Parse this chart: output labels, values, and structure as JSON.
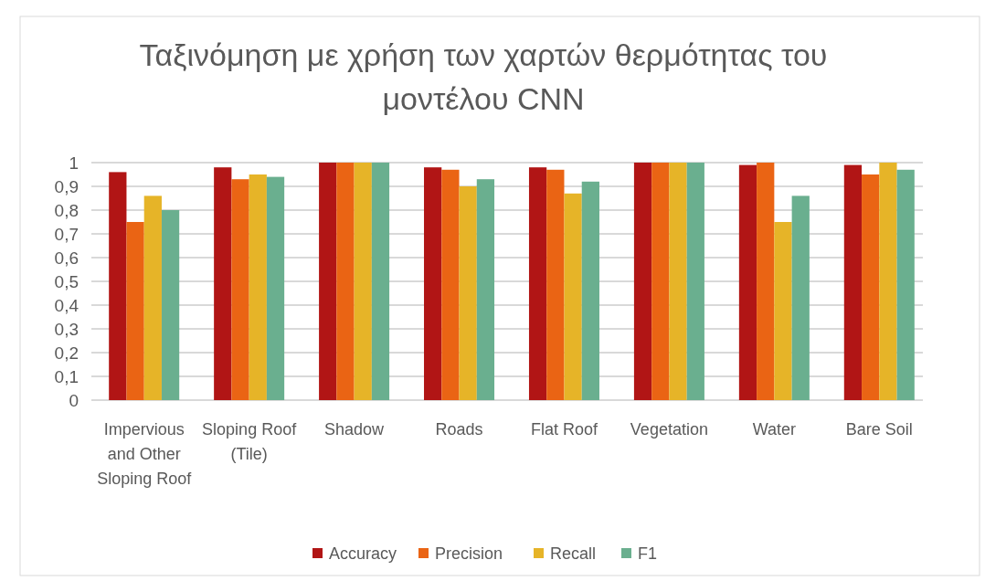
{
  "chart_data": {
    "type": "bar",
    "title": "Ταξινόμηση με χρήση των χαρτών θερμότητας του μοντέλου CNN",
    "categories": [
      "Impervious and Other Sloping Roof",
      "Sloping Roof (Tile)",
      "Shadow",
      "Roads",
      "Flat Roof",
      "Vegetation",
      "Water",
      "Bare Soil"
    ],
    "series": [
      {
        "name": "Accuracy",
        "color": "#b11515",
        "values": [
          0.96,
          0.98,
          1,
          0.98,
          0.98,
          1,
          0.99,
          0.99
        ]
      },
      {
        "name": "Precision",
        "color": "#ea6414",
        "values": [
          0.75,
          0.93,
          1,
          0.97,
          0.97,
          1,
          1,
          0.95
        ]
      },
      {
        "name": "Recall",
        "color": "#e6b428",
        "values": [
          0.86,
          0.95,
          1,
          0.9,
          0.87,
          1,
          0.75,
          1
        ]
      },
      {
        "name": "F1",
        "color": "#6aaf8f",
        "values": [
          0.8,
          0.94,
          1,
          0.93,
          0.92,
          1,
          0.86,
          0.97
        ]
      }
    ],
    "ylim": [
      0,
      1
    ],
    "yticks": [
      0,
      {
        "value": 0.1,
        "label": "0,1"
      },
      {
        "value": 0.2,
        "label": "0,2"
      },
      {
        "value": 0.3,
        "label": "0,3"
      },
      {
        "value": 0.4,
        "label": "0,4"
      },
      {
        "value": 0.5,
        "label": "0,5"
      },
      {
        "value": 0.6,
        "label": "0,6"
      },
      {
        "value": 0.7,
        "label": "0,7"
      },
      {
        "value": 0.8,
        "label": "0,8"
      },
      {
        "value": 0.9,
        "label": "0,9"
      },
      1
    ],
    "grid": "y",
    "legend": "bottom"
  }
}
